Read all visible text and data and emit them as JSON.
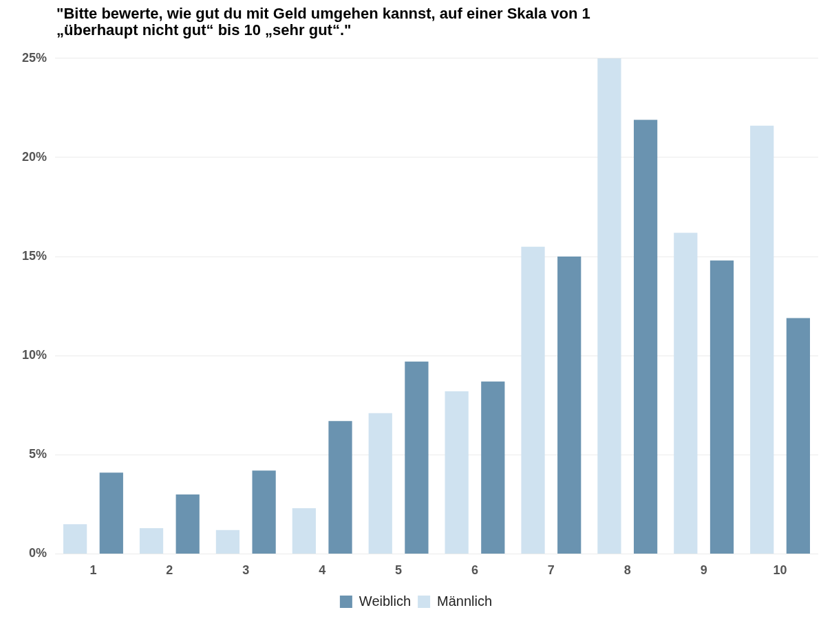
{
  "chart_data": {
    "type": "bar",
    "title": "\"Bitte bewerte, wie gut du mit Geld umgehen kannst, auf einer Skala von 1 „überhaupt nicht gut“ bis 10 „sehr gut“.\"",
    "categories": [
      "1",
      "2",
      "3",
      "4",
      "5",
      "6",
      "7",
      "8",
      "9",
      "10"
    ],
    "series": [
      {
        "name": "Männlich",
        "color": "#cfe2f0",
        "values": [
          1.5,
          1.3,
          1.2,
          2.3,
          7.1,
          8.2,
          15.5,
          25,
          16.2,
          21.6
        ]
      },
      {
        "name": "Weiblich",
        "color": "#6a93b0",
        "values": [
          4.1,
          3.0,
          4.2,
          6.7,
          9.7,
          8.7,
          15.0,
          21.9,
          14.8,
          11.9
        ]
      }
    ],
    "ylim": [
      0,
      25
    ],
    "yticks": [
      {
        "value": 0,
        "label": "0%"
      },
      {
        "value": 5,
        "label": "5%"
      },
      {
        "value": 10,
        "label": "10%"
      },
      {
        "value": 15,
        "label": "15%"
      },
      {
        "value": 20,
        "label": "20%"
      },
      {
        "value": 25,
        "label": "25%"
      }
    ],
    "grid": "y",
    "legend": "bottom"
  }
}
